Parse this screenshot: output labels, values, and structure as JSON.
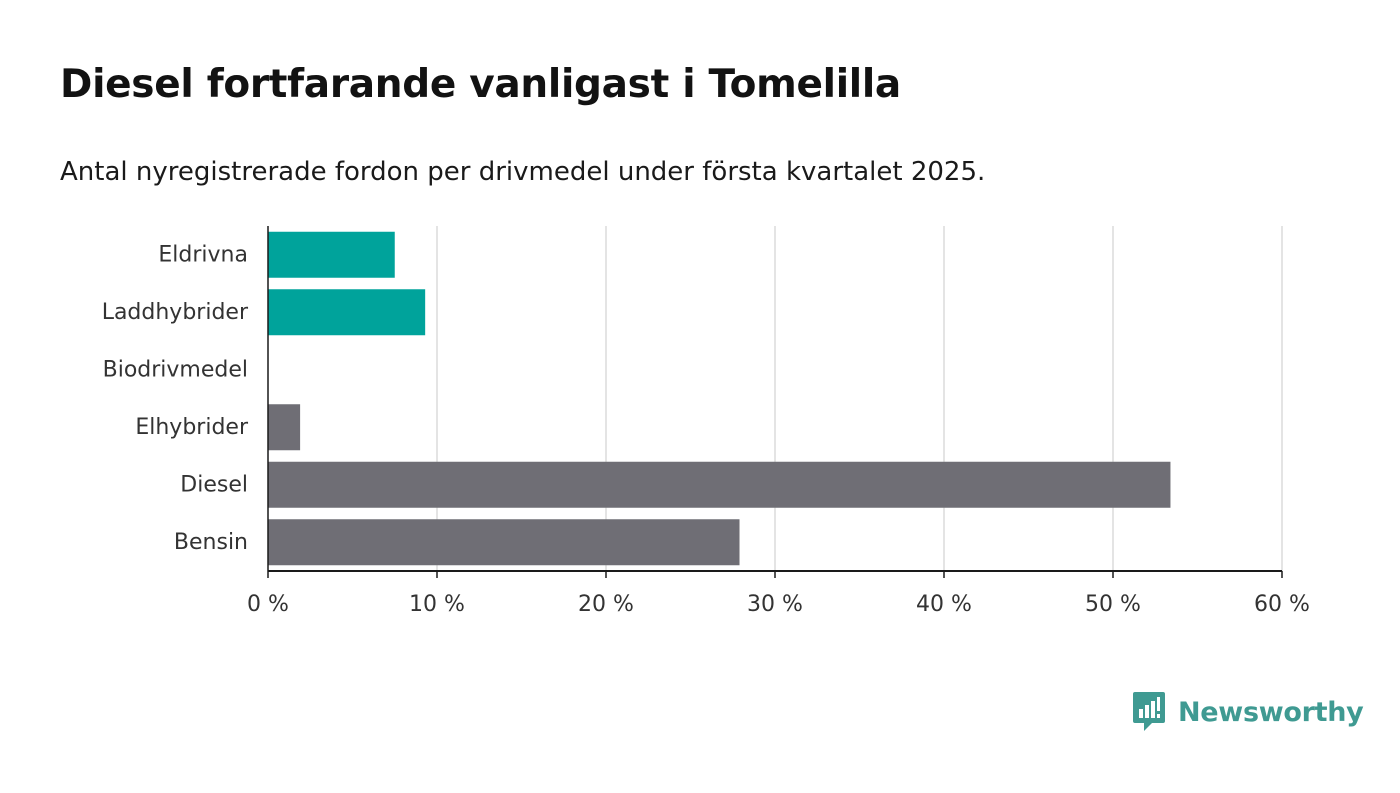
{
  "header": {
    "title": "Diesel fortfarande vanligast i Tomelilla",
    "subtitle": "Antal nyregistrerade fordon per drivmedel under första kvartalet 2025."
  },
  "chart_data": {
    "type": "bar",
    "orientation": "horizontal",
    "categories": [
      "Eldrivna",
      "Laddhybrider",
      "Biodrivmedel",
      "Elhybrider",
      "Diesel",
      "Bensin"
    ],
    "values": [
      7.5,
      9.3,
      0,
      1.9,
      53.4,
      27.9
    ],
    "bar_colors": [
      "#00a39b",
      "#00a39b",
      "#707070",
      "#6f6e75",
      "#6f6e75",
      "#6f6e75"
    ],
    "x_ticks": [
      0,
      10,
      20,
      30,
      40,
      50,
      60
    ],
    "x_tick_labels": [
      "0 %",
      "10 %",
      "20 %",
      "30 %",
      "40 %",
      "50 %",
      "60 %"
    ],
    "xlim": [
      0,
      60
    ],
    "grid": true,
    "title": "Diesel fortfarande vanligast i Tomelilla",
    "subtitle": "Antal nyregistrerade fordon per drivmedel under första kvartalet 2025."
  },
  "branding": {
    "name": "Newsworthy",
    "icon": "newsworthy-logo-icon",
    "color": "#3f9a92"
  }
}
